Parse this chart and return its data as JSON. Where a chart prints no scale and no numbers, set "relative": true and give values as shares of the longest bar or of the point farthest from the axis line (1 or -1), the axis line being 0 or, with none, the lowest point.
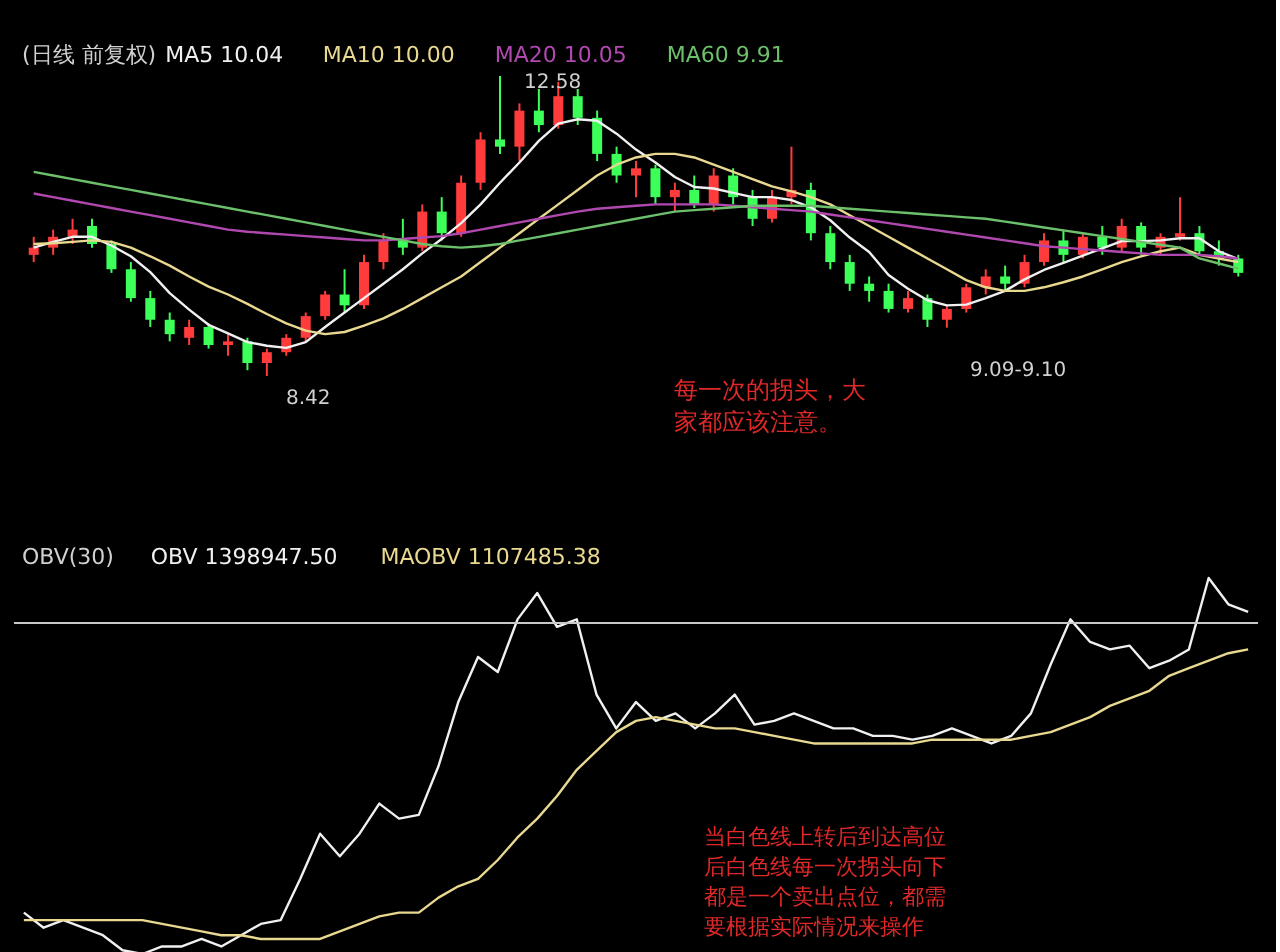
{
  "chart_data": [
    {
      "type": "candlestick",
      "title": "(日线 前复权)",
      "legend": "top left",
      "categories": [
        null,
        null,
        null,
        null,
        null,
        null,
        null,
        null,
        null,
        null,
        null,
        null,
        null,
        null,
        null,
        null,
        null,
        null,
        null,
        null,
        null,
        null,
        null,
        null,
        null,
        null,
        null,
        null,
        null,
        null,
        null,
        null,
        null,
        null,
        null,
        null,
        null,
        null,
        null,
        null,
        null,
        null,
        null,
        null,
        null,
        null,
        null,
        null,
        null,
        null,
        null,
        null,
        null,
        null,
        null,
        null,
        null,
        null,
        null,
        null,
        null,
        null,
        null
      ],
      "ohlc": [
        [
          10.1,
          10.35,
          10.0,
          10.2
        ],
        [
          10.2,
          10.45,
          10.1,
          10.35
        ],
        [
          10.35,
          10.6,
          10.25,
          10.45
        ],
        [
          10.5,
          10.6,
          10.2,
          10.25
        ],
        [
          10.25,
          10.3,
          9.85,
          9.9
        ],
        [
          9.9,
          10.0,
          9.45,
          9.5
        ],
        [
          9.5,
          9.6,
          9.1,
          9.2
        ],
        [
          9.2,
          9.3,
          8.9,
          9.0
        ],
        [
          8.95,
          9.2,
          8.85,
          9.1
        ],
        [
          9.1,
          9.15,
          8.8,
          8.85
        ],
        [
          8.85,
          9.0,
          8.7,
          8.9
        ],
        [
          8.9,
          8.95,
          8.5,
          8.6
        ],
        [
          8.6,
          8.8,
          8.42,
          8.75
        ],
        [
          8.75,
          9.0,
          8.7,
          8.95
        ],
        [
          8.95,
          9.3,
          8.9,
          9.25
        ],
        [
          9.25,
          9.6,
          9.2,
          9.55
        ],
        [
          9.55,
          9.9,
          9.3,
          9.4
        ],
        [
          9.4,
          10.1,
          9.35,
          10.0
        ],
        [
          10.0,
          10.4,
          9.9,
          10.3
        ],
        [
          10.3,
          10.6,
          10.1,
          10.2
        ],
        [
          10.2,
          10.8,
          10.15,
          10.7
        ],
        [
          10.7,
          10.9,
          10.3,
          10.4
        ],
        [
          10.4,
          11.2,
          10.35,
          11.1
        ],
        [
          11.1,
          11.8,
          11.0,
          11.7
        ],
        [
          11.7,
          12.58,
          11.5,
          11.6
        ],
        [
          11.6,
          12.2,
          11.4,
          12.1
        ],
        [
          12.1,
          12.4,
          11.8,
          11.9
        ],
        [
          11.9,
          12.5,
          11.85,
          12.3
        ],
        [
          12.3,
          12.4,
          11.9,
          12.0
        ],
        [
          12.0,
          12.1,
          11.4,
          11.5
        ],
        [
          11.5,
          11.6,
          11.1,
          11.2
        ],
        [
          11.2,
          11.4,
          10.9,
          11.3
        ],
        [
          11.3,
          11.35,
          10.8,
          10.9
        ],
        [
          10.9,
          11.1,
          10.7,
          11.0
        ],
        [
          11.0,
          11.2,
          10.75,
          10.8
        ],
        [
          10.8,
          11.3,
          10.7,
          11.2
        ],
        [
          11.2,
          11.3,
          10.8,
          10.9
        ],
        [
          10.9,
          11.0,
          10.5,
          10.6
        ],
        [
          10.6,
          11.0,
          10.55,
          10.9
        ],
        [
          10.9,
          11.6,
          10.8,
          11.0
        ],
        [
          11.0,
          11.1,
          10.3,
          10.4
        ],
        [
          10.4,
          10.5,
          9.9,
          10.0
        ],
        [
          10.0,
          10.1,
          9.6,
          9.7
        ],
        [
          9.7,
          9.8,
          9.45,
          9.6
        ],
        [
          9.6,
          9.7,
          9.3,
          9.35
        ],
        [
          9.35,
          9.6,
          9.3,
          9.5
        ],
        [
          9.5,
          9.55,
          9.1,
          9.2
        ],
        [
          9.2,
          9.4,
          9.09,
          9.35
        ],
        [
          9.35,
          9.7,
          9.3,
          9.65
        ],
        [
          9.65,
          9.9,
          9.55,
          9.8
        ],
        [
          9.8,
          9.95,
          9.6,
          9.7
        ],
        [
          9.7,
          10.1,
          9.65,
          10.0
        ],
        [
          10.0,
          10.4,
          9.95,
          10.3
        ],
        [
          10.3,
          10.45,
          10.0,
          10.1
        ],
        [
          10.1,
          10.4,
          10.05,
          10.35
        ],
        [
          10.35,
          10.5,
          10.1,
          10.2
        ],
        [
          10.2,
          10.6,
          10.15,
          10.5
        ],
        [
          10.5,
          10.55,
          10.1,
          10.2
        ],
        [
          10.2,
          10.4,
          10.1,
          10.35
        ],
        [
          10.35,
          10.9,
          10.3,
          10.4
        ],
        [
          10.4,
          10.5,
          10.1,
          10.15
        ],
        [
          10.15,
          10.3,
          9.95,
          10.05
        ],
        [
          10.05,
          10.1,
          9.8,
          9.85
        ]
      ],
      "colors": [
        "#ff3b3b",
        "#ff3b3b",
        "#ff3b3b",
        "#3cff5a",
        "#3cff5a",
        "#3cff5a",
        "#3cff5a",
        "#3cff5a",
        "#ff3b3b",
        "#3cff5a",
        "#ff3b3b",
        "#3cff5a",
        "#ff3b3b",
        "#ff3b3b",
        "#ff3b3b",
        "#ff3b3b",
        "#3cff5a",
        "#ff3b3b",
        "#ff3b3b",
        "#3cff5a",
        "#ff3b3b",
        "#3cff5a",
        "#ff3b3b",
        "#ff3b3b",
        "#3cff5a",
        "#ff3b3b",
        "#3cff5a",
        "#ff3b3b",
        "#3cff5a",
        "#3cff5a",
        "#3cff5a",
        "#ff3b3b",
        "#3cff5a",
        "#ff3b3b",
        "#3cff5a",
        "#ff3b3b",
        "#3cff5a",
        "#3cff5a",
        "#ff3b3b",
        "#ff3b3b",
        "#3cff5a",
        "#3cff5a",
        "#3cff5a",
        "#3cff5a",
        "#3cff5a",
        "#ff3b3b",
        "#3cff5a",
        "#ff3b3b",
        "#ff3b3b",
        "#ff3b3b",
        "#3cff5a",
        "#ff3b3b",
        "#ff3b3b",
        "#3cff5a",
        "#ff3b3b",
        "#3cff5a",
        "#ff3b3b",
        "#3cff5a",
        "#ff3b3b",
        "#ff3b3b",
        "#3cff5a",
        "#3cff5a",
        "#3cff5a"
      ],
      "series": [
        {
          "name": "MA5 10.04",
          "type": "line",
          "color": "#f0f0f0",
          "values": [
            10.2,
            10.28,
            10.35,
            10.35,
            10.23,
            10.08,
            9.86,
            9.57,
            9.34,
            9.13,
            9.01,
            8.89,
            8.84,
            8.81,
            8.89,
            9.1,
            9.3,
            9.5,
            9.7,
            9.9,
            10.12,
            10.32,
            10.54,
            10.8,
            11.1,
            11.38,
            11.68,
            11.92,
            11.98,
            11.96,
            11.78,
            11.56,
            11.38,
            11.18,
            11.04,
            11.02,
            10.96,
            10.9,
            10.9,
            10.86,
            10.76,
            10.58,
            10.34,
            10.14,
            9.82,
            9.63,
            9.47,
            9.4,
            9.41,
            9.5,
            9.6,
            9.76,
            9.89,
            9.99,
            10.09,
            10.19,
            10.29,
            10.29,
            10.3,
            10.33,
            10.33,
            10.15,
            10.04
          ]
        },
        {
          "name": "MA10 10.00",
          "type": "line",
          "color": "#e8d890",
          "values": [
            10.25,
            10.26,
            10.28,
            10.3,
            10.28,
            10.2,
            10.08,
            9.95,
            9.8,
            9.66,
            9.55,
            9.42,
            9.28,
            9.15,
            9.05,
            9.0,
            9.03,
            9.12,
            9.22,
            9.35,
            9.5,
            9.65,
            9.8,
            10.0,
            10.2,
            10.4,
            10.6,
            10.8,
            11.0,
            11.2,
            11.35,
            11.45,
            11.5,
            11.5,
            11.45,
            11.35,
            11.25,
            11.15,
            11.05,
            10.98,
            10.9,
            10.8,
            10.65,
            10.5,
            10.35,
            10.2,
            10.05,
            9.9,
            9.75,
            9.65,
            9.6,
            9.6,
            9.65,
            9.72,
            9.8,
            9.9,
            10.0,
            10.08,
            10.15,
            10.2,
            10.1,
            10.05,
            10.0
          ]
        },
        {
          "name": "MA20 10.05",
          "type": "line",
          "color": "#b048b0",
          "values": [
            10.95,
            10.9,
            10.85,
            10.8,
            10.75,
            10.7,
            10.65,
            10.6,
            10.55,
            10.5,
            10.45,
            10.42,
            10.4,
            10.38,
            10.36,
            10.34,
            10.32,
            10.3,
            10.3,
            10.32,
            10.34,
            10.36,
            10.4,
            10.45,
            10.5,
            10.55,
            10.6,
            10.65,
            10.7,
            10.74,
            10.76,
            10.78,
            10.8,
            10.8,
            10.8,
            10.8,
            10.78,
            10.76,
            10.74,
            10.72,
            10.7,
            10.66,
            10.62,
            10.58,
            10.54,
            10.5,
            10.46,
            10.42,
            10.38,
            10.34,
            10.3,
            10.26,
            10.22,
            10.2,
            10.18,
            10.16,
            10.14,
            10.12,
            10.1,
            10.1,
            10.1,
            10.08,
            10.05
          ]
        },
        {
          "name": "MA60 9.91",
          "type": "line",
          "color": "#6cc06c",
          "values": [
            11.25,
            11.2,
            11.15,
            11.1,
            11.05,
            11.0,
            10.95,
            10.9,
            10.85,
            10.8,
            10.75,
            10.7,
            10.65,
            10.6,
            10.55,
            10.5,
            10.45,
            10.4,
            10.35,
            10.3,
            10.25,
            10.22,
            10.2,
            10.22,
            10.25,
            10.3,
            10.35,
            10.4,
            10.45,
            10.5,
            10.55,
            10.6,
            10.65,
            10.7,
            10.72,
            10.74,
            10.76,
            10.78,
            10.78,
            10.78,
            10.78,
            10.76,
            10.74,
            10.72,
            10.7,
            10.68,
            10.66,
            10.64,
            10.62,
            10.6,
            10.56,
            10.52,
            10.48,
            10.44,
            10.4,
            10.36,
            10.32,
            10.28,
            10.24,
            10.2,
            10.05,
            9.98,
            9.91
          ]
        }
      ],
      "annotations": [
        "12.58",
        "8.42",
        "9.09-9.10",
        "每一次的拐头，大家都应该注意。"
      ]
    },
    {
      "type": "line",
      "title": "OBV(30)",
      "relative": true,
      "legend": "top left",
      "categories": [
        null,
        null,
        null,
        null,
        null,
        null,
        null,
        null,
        null,
        null,
        null,
        null,
        null,
        null,
        null,
        null,
        null,
        null,
        null,
        null,
        null,
        null,
        null,
        null,
        null,
        null,
        null,
        null,
        null,
        null,
        null,
        null,
        null,
        null,
        null,
        null,
        null,
        null,
        null,
        null,
        null,
        null,
        null,
        null,
        null,
        null,
        null,
        null,
        null,
        null,
        null,
        null,
        null,
        null,
        null,
        null,
        null,
        null,
        null,
        null,
        null,
        null,
        null
      ],
      "series": [
        {
          "name": "OBV 1398947.50",
          "color": "#f0f0f0",
          "values": [
            0.11,
            0.07,
            0.09,
            0.07,
            0.05,
            0.01,
            0,
            0.02,
            0.02,
            0.04,
            0.02,
            0.05,
            0.08,
            0.09,
            0.2,
            0.32,
            0.26,
            0.32,
            0.4,
            0.36,
            0.37,
            0.5,
            0.67,
            0.79,
            0.75,
            0.89,
            0.96,
            0.87,
            0.89,
            0.69,
            0.6,
            0.67,
            0.62,
            0.64,
            0.6,
            0.64,
            0.69,
            0.61,
            0.62,
            0.64,
            0.62,
            0.6,
            0.6,
            0.58,
            0.58,
            0.57,
            0.58,
            0.6,
            0.58,
            0.56,
            0.58,
            0.64,
            0.77,
            0.89,
            0.83,
            0.81,
            0.82,
            0.76,
            0.78,
            0.81,
            1,
            0.93,
            0.91
          ]
        },
        {
          "name": "MAOBV 1107485.38",
          "color": "#e8d890",
          "values": [
            0.09,
            0.09,
            0.09,
            0.09,
            0.09,
            0.09,
            0.09,
            0.08,
            0.07,
            0.06,
            0.05,
            0.05,
            0.04,
            0.04,
            0.04,
            0.04,
            0.06,
            0.08,
            0.1,
            0.11,
            0.11,
            0.15,
            0.18,
            0.2,
            0.25,
            0.31,
            0.36,
            0.42,
            0.49,
            0.54,
            0.59,
            0.62,
            0.63,
            0.62,
            0.61,
            0.6,
            0.6,
            0.59,
            0.58,
            0.57,
            0.56,
            0.56,
            0.56,
            0.56,
            0.56,
            0.56,
            0.57,
            0.57,
            0.57,
            0.57,
            0.57,
            0.58,
            0.59,
            0.61,
            0.63,
            0.66,
            0.68,
            0.7,
            0.74,
            0.76,
            0.78,
            0.8,
            0.81
          ]
        }
      ],
      "ref_lines": [
        {
          "axis": "y",
          "value": 0.88,
          "color": "#c8c8c8"
        }
      ],
      "annotations": [
        "当白色线上转后到达高位后白色线每一次拐头向下都是一个卖出点位，都需要根据实际情况来操作"
      ]
    }
  ]
}
